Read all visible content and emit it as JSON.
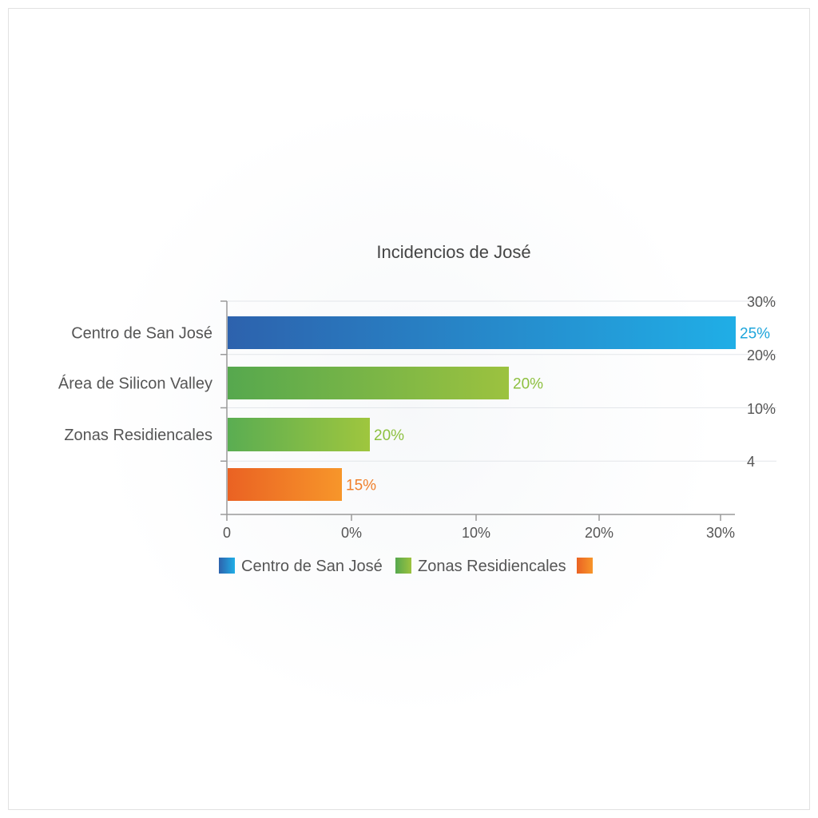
{
  "chart_data": {
    "type": "bar",
    "orientation": "horizontal",
    "title": "Incidencios de José",
    "categories": [
      "Centro de San José",
      "Área de Silicon Valley",
      "Zonas Residiencales",
      ""
    ],
    "values": [
      25,
      20,
      20,
      15
    ],
    "value_labels": [
      "25%",
      "20%",
      "20%",
      "15%"
    ],
    "bar_colors": [
      [
        "#2d62ad",
        "#20aee6"
      ],
      [
        "#56a84e",
        "#9cc23f"
      ],
      [
        "#5aad52",
        "#9fc63e"
      ],
      [
        "#ea6223",
        "#f7962a"
      ]
    ],
    "label_colors": [
      "#1ea5db",
      "#8dc03f",
      "#8dc03f",
      "#f07f2a"
    ],
    "x_ticks": [
      "0",
      "0%",
      "10%",
      "20%",
      "30%"
    ],
    "right_ticks": [
      "30%",
      "20%",
      "10%",
      "4"
    ],
    "grid": true,
    "legend_position": "bottom",
    "legend": [
      {
        "label": "Centro de San José",
        "colors": [
          "#2d62ad",
          "#20aee6"
        ]
      },
      {
        "label": "Zonas Residiencales",
        "colors": [
          "#56a84e",
          "#9cc23f"
        ]
      },
      {
        "label": "",
        "colors": [
          "#ea6223",
          "#f7962a"
        ]
      }
    ]
  }
}
